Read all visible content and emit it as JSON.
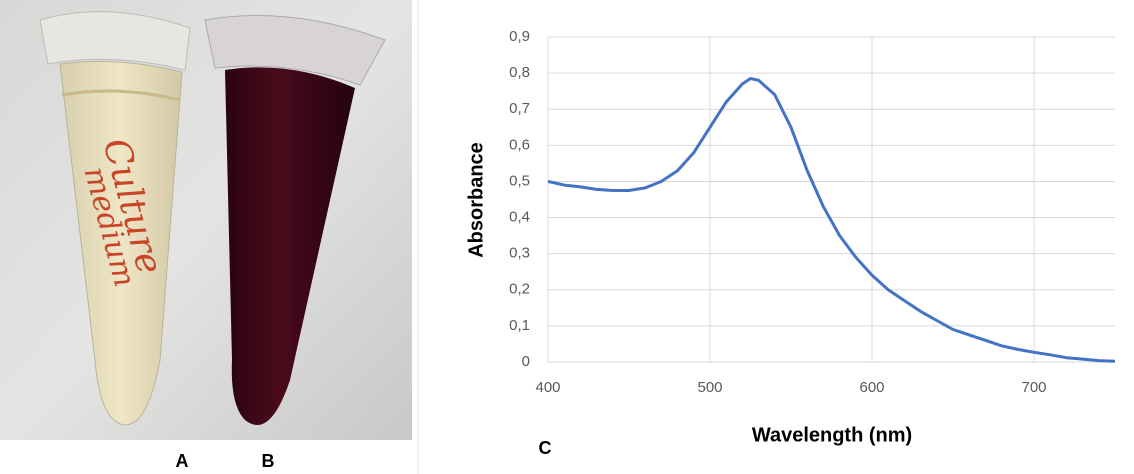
{
  "panels": {
    "photo_labels": [
      "A",
      "B"
    ],
    "chart_label": "C",
    "tube_text": [
      "Culture",
      "medium"
    ]
  },
  "chart_data": {
    "type": "line",
    "x_label": "Wavelength (nm)",
    "y_label": "Absorbance",
    "x": [
      400,
      410,
      420,
      430,
      440,
      450,
      460,
      470,
      480,
      490,
      500,
      510,
      520,
      525,
      530,
      540,
      550,
      560,
      570,
      580,
      590,
      600,
      610,
      620,
      630,
      640,
      650,
      660,
      670,
      680,
      690,
      700,
      710,
      720,
      730,
      740,
      750
    ],
    "series": [
      {
        "color": "#4472c4",
        "values": [
          0.5,
          0.49,
          0.485,
          0.478,
          0.475,
          0.475,
          0.482,
          0.5,
          0.53,
          0.58,
          0.65,
          0.72,
          0.77,
          0.785,
          0.78,
          0.74,
          0.65,
          0.53,
          0.43,
          0.35,
          0.29,
          0.24,
          0.2,
          0.17,
          0.14,
          0.115,
          0.09,
          0.075,
          0.06,
          0.045,
          0.035,
          0.027,
          0.02,
          0.012,
          0.008,
          0.004,
          0.002
        ]
      }
    ],
    "xlim": [
      400,
      750
    ],
    "ylim": [
      0,
      0.9
    ],
    "xticks": [
      400,
      500,
      600,
      700
    ],
    "yticks": [
      0,
      {
        "value": 0.1,
        "label": "0,1"
      },
      {
        "value": 0.2,
        "label": "0,2"
      },
      {
        "value": 0.3,
        "label": "0,3"
      },
      {
        "value": 0.4,
        "label": "0,4"
      },
      {
        "value": 0.5,
        "label": "0,5"
      },
      {
        "value": 0.6,
        "label": "0,6"
      },
      {
        "value": 0.7,
        "label": "0,7"
      },
      {
        "value": 0.8,
        "label": "0,8"
      },
      {
        "value": 0.9,
        "label": "0,9"
      }
    ],
    "grid": true
  }
}
